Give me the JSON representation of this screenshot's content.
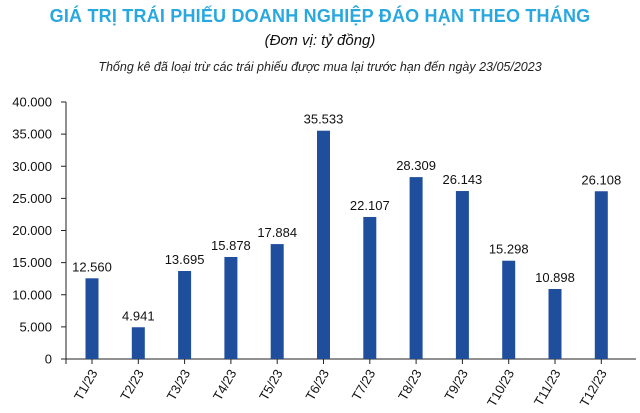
{
  "chart_data": {
    "type": "bar",
    "title": "GIÁ TRỊ TRÁI PHIẾU DOANH NGHIỆP ĐÁO HẠN THEO THÁNG",
    "subtitle": "(Đơn vị: tỷ đồng)",
    "note": "Thống kê đã loại trừ các trái phiếu được mua lại trước hạn đến ngày 23/05/2023",
    "categories": [
      "T1/23",
      "T2/23",
      "T3/23",
      "T4/23",
      "T5/23",
      "T6/23",
      "T7/23",
      "T8/23",
      "T9/23",
      "T10/23",
      "T11/23",
      "T12/23"
    ],
    "values": [
      12560,
      4941,
      13695,
      15878,
      17884,
      35533,
      22107,
      28309,
      26143,
      15298,
      10898,
      26108
    ],
    "data_labels": [
      "12.560",
      "4.941",
      "13.695",
      "15.878",
      "17.884",
      "35.533",
      "22.107",
      "28.309",
      "26.143",
      "15.298",
      "10.898",
      "26.108"
    ],
    "y_ticks": [
      "0",
      "5.000",
      "10.000",
      "15.000",
      "20.000",
      "25.000",
      "30.000",
      "35.000",
      "40.000"
    ],
    "ylim": [
      0,
      40000
    ],
    "xlabel": "",
    "ylabel": "",
    "grid": false,
    "legend": "none",
    "bar_color": "#1f4e9c",
    "title_color": "#29a8df"
  }
}
